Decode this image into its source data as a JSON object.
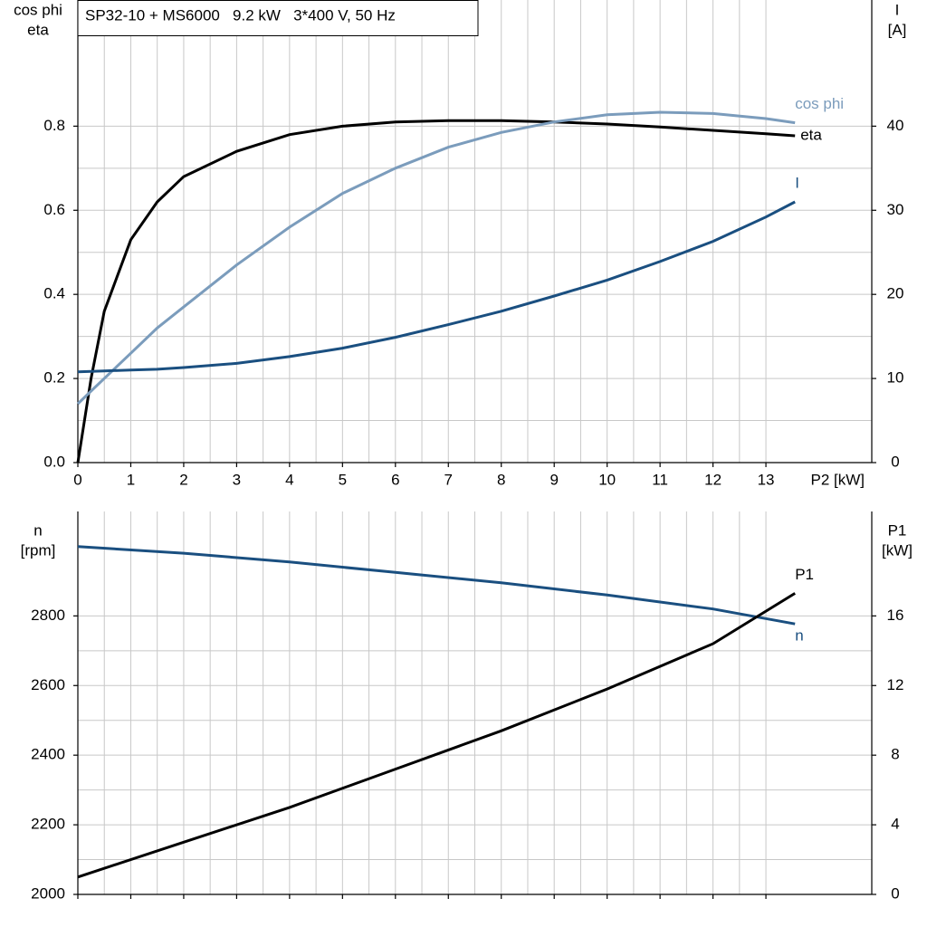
{
  "chart_data": [
    {
      "type": "line",
      "title": "SP32-10 + MS6000   9.2 kW   3*400 V, 50 Hz",
      "ylabel": [
        "cos phi",
        "eta"
      ],
      "y2label": [
        "I",
        "[A]"
      ],
      "xlabel": "P2 [kW]",
      "x": [
        0,
        0.25,
        0.5,
        1,
        1.5,
        2,
        3,
        4,
        5,
        6,
        7,
        8,
        9,
        10,
        11,
        12,
        13,
        13.55
      ],
      "xlim": [
        0,
        15
      ],
      "xticks": [
        0,
        1,
        2,
        3,
        4,
        5,
        6,
        7,
        8,
        9,
        10,
        11,
        12,
        13
      ],
      "ylim": [
        0,
        1.1
      ],
      "yticks": [
        {
          "value": 0,
          "label": "0.0"
        },
        0.2,
        0.4,
        0.6,
        0.8
      ],
      "y2lim": [
        0,
        55
      ],
      "y2ticks": [
        0,
        10,
        20,
        30,
        40
      ],
      "grid": true,
      "series": [
        {
          "name": "eta",
          "color": "#000000",
          "values": [
            0,
            0.2,
            0.36,
            0.53,
            0.62,
            0.68,
            0.74,
            0.78,
            0.8,
            0.81,
            0.813,
            0.813,
            0.81,
            0.805,
            0.798,
            0.79,
            0.782,
            0.777
          ]
        },
        {
          "name": "cos phi",
          "color": "#7b9cbc",
          "values": [
            0.14,
            0.17,
            0.2,
            0.26,
            0.32,
            0.37,
            0.47,
            0.56,
            0.64,
            0.7,
            0.75,
            0.785,
            0.81,
            0.827,
            0.833,
            0.83,
            0.818,
            0.808
          ]
        },
        {
          "name": "I",
          "color": "#1a4f80",
          "axis": "y2",
          "values": [
            10.8,
            10.85,
            10.9,
            11.0,
            11.1,
            11.3,
            11.8,
            12.6,
            13.6,
            14.9,
            16.4,
            18.0,
            19.8,
            21.7,
            23.9,
            26.3,
            29.2,
            31.0
          ]
        }
      ]
    },
    {
      "type": "line",
      "ylabel": [
        "n",
        "[rpm]"
      ],
      "y2label": [
        "P1",
        "[kW]"
      ],
      "x": [
        0,
        2,
        4,
        6,
        8,
        10,
        12,
        13.55
      ],
      "xlim": [
        0,
        15
      ],
      "xticks": [
        0,
        1,
        2,
        3,
        4,
        5,
        6,
        7,
        8,
        9,
        10,
        11,
        12,
        13
      ],
      "xtick_labels": false,
      "ylim": [
        2000,
        3100
      ],
      "yticks": [
        2000,
        2200,
        2400,
        2600,
        2800
      ],
      "y2lim": [
        0,
        22
      ],
      "y2ticks": [
        0,
        4,
        8,
        12,
        16
      ],
      "grid": true,
      "series": [
        {
          "name": "n",
          "color": "#1a4f80",
          "values": [
            2999,
            2980,
            2955,
            2925,
            2895,
            2860,
            2820,
            2777
          ]
        },
        {
          "name": "P1",
          "color": "#000000",
          "axis": "y2",
          "values": [
            1.0,
            3.0,
            5.0,
            7.2,
            9.4,
            11.8,
            14.4,
            17.3
          ]
        }
      ]
    }
  ]
}
